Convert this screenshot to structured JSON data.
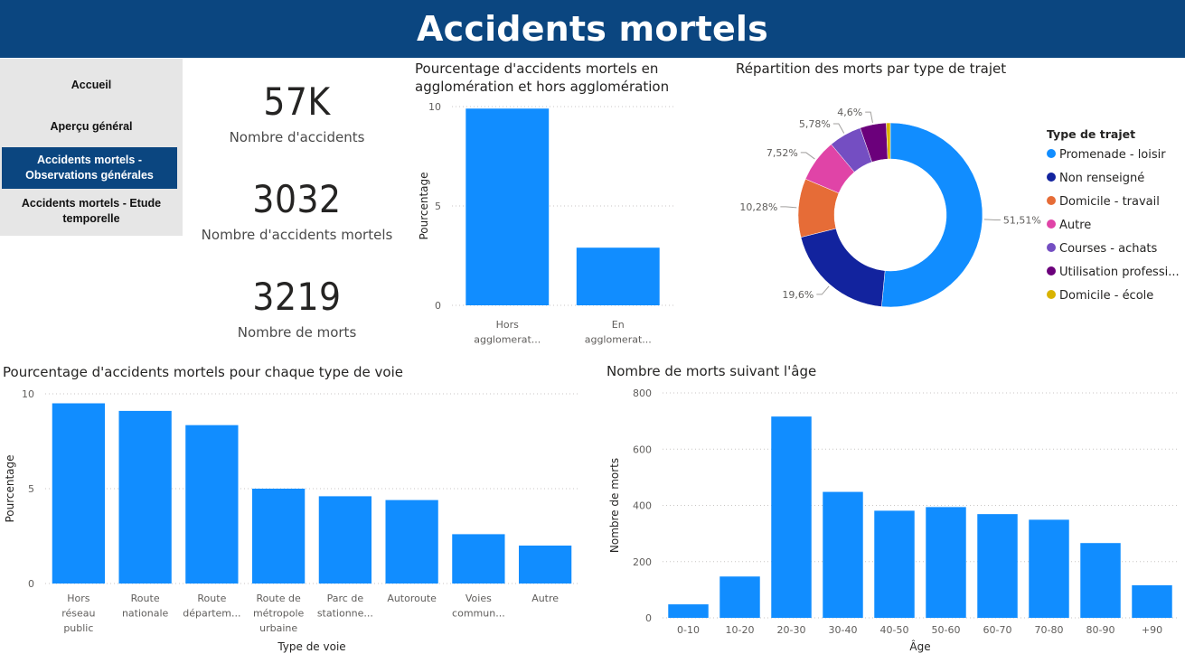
{
  "header": {
    "title": "Accidents mortels"
  },
  "nav": {
    "items": [
      {
        "label": "Accueil"
      },
      {
        "label": "Aperçu général"
      },
      {
        "label_line1": "Accidents mortels -",
        "label_line2": "Observations générales"
      },
      {
        "label_line1": "Accidents mortels - Etude",
        "label_line2": "temporelle"
      }
    ]
  },
  "kpis": [
    {
      "value": "57K",
      "label": "Nombre d'accidents"
    },
    {
      "value": "3032",
      "label": "Nombre d'accidents mortels"
    },
    {
      "value": "3219",
      "label": "Nombre de morts"
    }
  ],
  "chart_data": [
    {
      "type": "bar",
      "title_line1": "Pourcentage d'accidents mortels en",
      "title_line2": "agglomération et hors agglomération",
      "xlabel": "",
      "ylabel": "Pourcentage",
      "ylim": [
        0,
        10
      ],
      "yticks": [
        "0",
        "5",
        "10"
      ],
      "grid": true,
      "categories": [
        "Hors agglomération",
        "En agglomération"
      ],
      "category_labels": [
        [
          "Hors",
          "agglomerat..."
        ],
        [
          "En",
          "agglomerat..."
        ]
      ],
      "values": [
        9.9,
        2.9
      ],
      "color": "#118dff"
    },
    {
      "type": "pie",
      "title": "Répartition des morts par type de trajet",
      "legend_title": "Type de trajet",
      "legend_position": "right",
      "slices": [
        {
          "name": "Promenade - loisir",
          "value": 51.51,
          "label": "51,51%",
          "color": "#118dff"
        },
        {
          "name": "Non renseigné",
          "value": 19.6,
          "label": "19,6%",
          "color": "#12239e"
        },
        {
          "name": "Domicile - travail",
          "value": 10.28,
          "label": "10,28%",
          "color": "#e66c37"
        },
        {
          "name": "Autre",
          "value": 7.52,
          "label": "7,52%",
          "color": "#e044a7"
        },
        {
          "name": "Courses - achats",
          "value": 5.78,
          "label": "5,78%",
          "color": "#744ec2"
        },
        {
          "name": "Utilisation professi...",
          "value": 4.6,
          "label": "4,6%",
          "color": "#6b007b"
        },
        {
          "name": "Domicile - école",
          "value": 0.71,
          "label": "",
          "color": "#d9b300"
        }
      ]
    },
    {
      "type": "bar",
      "title": "Pourcentage d'accidents mortels pour chaque type de voie",
      "xlabel": "Type de voie",
      "ylabel": "Pourcentage",
      "ylim": [
        0,
        10
      ],
      "yticks": [
        "0",
        "5",
        "10"
      ],
      "grid": true,
      "categories": [
        "Hors réseau public",
        "Route nationale",
        "Route départementale",
        "Route de métropole urbaine",
        "Parc de stationnement",
        "Autoroute",
        "Voies communales",
        "Autre"
      ],
      "category_labels": [
        [
          "Hors",
          "réseau",
          "public"
        ],
        [
          "Route",
          "nationale"
        ],
        [
          "Route",
          "départem..."
        ],
        [
          "Route de",
          "métropole",
          "urbaine"
        ],
        [
          "Parc de",
          "stationne..."
        ],
        [
          "Autoroute"
        ],
        [
          "Voies",
          "commun..."
        ],
        [
          "Autre"
        ]
      ],
      "values": [
        9.5,
        9.1,
        8.35,
        5.0,
        4.6,
        4.4,
        2.6,
        2.0
      ],
      "color": "#118dff"
    },
    {
      "type": "bar",
      "title": "Nombre de morts suivant l'âge",
      "xlabel": "Âge",
      "ylabel": "Nombre de morts",
      "ylim": [
        0,
        800
      ],
      "yticks": [
        "0",
        "200",
        "400",
        "600",
        "800"
      ],
      "grid": true,
      "categories": [
        "0-10",
        "10-20",
        "20-30",
        "30-40",
        "40-50",
        "50-60",
        "60-70",
        "70-80",
        "80-90",
        "+90"
      ],
      "category_labels": [
        [
          "0-10"
        ],
        [
          "10-20"
        ],
        [
          "20-30"
        ],
        [
          "30-40"
        ],
        [
          "40-50"
        ],
        [
          "50-60"
        ],
        [
          "60-70"
        ],
        [
          "70-80"
        ],
        [
          "80-90"
        ],
        [
          "+90"
        ]
      ],
      "values": [
        48,
        147,
        716,
        448,
        381,
        394,
        369,
        349,
        266,
        116
      ],
      "color": "#118dff"
    }
  ]
}
